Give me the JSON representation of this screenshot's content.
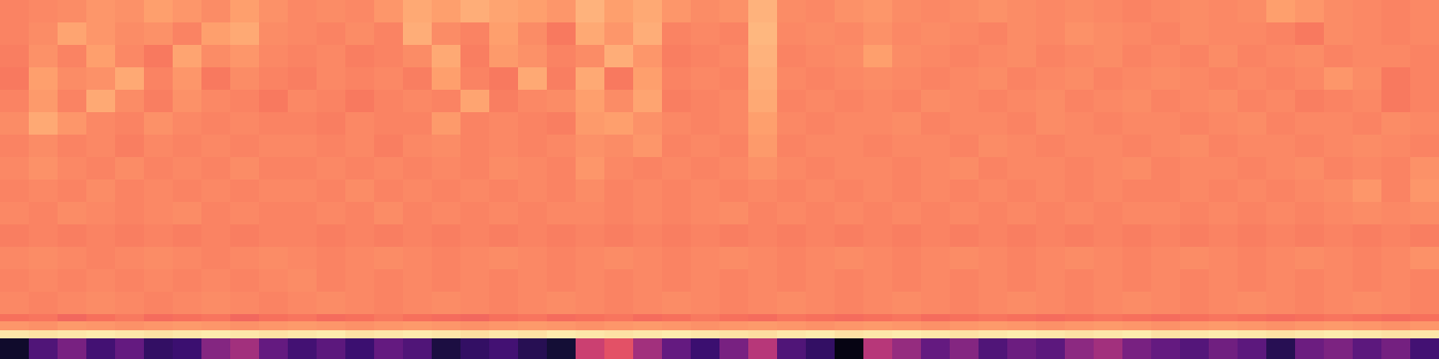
{
  "chart_data": {
    "type": "heatmap",
    "color": "magma",
    "tick_labels": false,
    "grid": false,
    "xlim": [
      -0.5,
      49.5
    ],
    "ylim": [
      400,
      0
    ],
    "y": [
      0,
      25,
      50,
      75,
      100,
      125,
      150,
      175,
      200,
      225,
      250,
      275,
      300,
      325,
      350,
      358,
      368,
      377,
      400
    ],
    "zlim": [
      0,
      1
    ],
    "z": [
      [
        0.74,
        0.75,
        0.76,
        0.78,
        0.77,
        0.8,
        0.78,
        0.76,
        0.8,
        0.77,
        0.75,
        0.76,
        0.75,
        0.78,
        0.82,
        0.8,
        0.83,
        0.81,
        0.8,
        0.78,
        0.84,
        0.8,
        0.82,
        0.78,
        0.76,
        0.77,
        0.84,
        0.76,
        0.75,
        0.77,
        0.78,
        0.76,
        0.75,
        0.76,
        0.77,
        0.76,
        0.75,
        0.76,
        0.75,
        0.74,
        0.75,
        0.76,
        0.75,
        0.76,
        0.8,
        0.78,
        0.76,
        0.75,
        0.74,
        0.75
      ],
      [
        0.74,
        0.76,
        0.81,
        0.78,
        0.76,
        0.77,
        0.74,
        0.8,
        0.82,
        0.76,
        0.75,
        0.74,
        0.76,
        0.74,
        0.83,
        0.76,
        0.74,
        0.8,
        0.76,
        0.72,
        0.82,
        0.78,
        0.83,
        0.74,
        0.75,
        0.74,
        0.85,
        0.75,
        0.76,
        0.75,
        0.77,
        0.75,
        0.76,
        0.75,
        0.74,
        0.76,
        0.75,
        0.77,
        0.76,
        0.75,
        0.74,
        0.76,
        0.75,
        0.75,
        0.74,
        0.72,
        0.76,
        0.75,
        0.74,
        0.75
      ],
      [
        0.73,
        0.77,
        0.74,
        0.8,
        0.75,
        0.72,
        0.81,
        0.76,
        0.78,
        0.75,
        0.74,
        0.75,
        0.73,
        0.74,
        0.76,
        0.82,
        0.73,
        0.79,
        0.77,
        0.74,
        0.76,
        0.83,
        0.78,
        0.73,
        0.74,
        0.75,
        0.84,
        0.74,
        0.75,
        0.76,
        0.8,
        0.76,
        0.75,
        0.74,
        0.75,
        0.76,
        0.74,
        0.75,
        0.76,
        0.74,
        0.75,
        0.74,
        0.76,
        0.74,
        0.75,
        0.76,
        0.74,
        0.75,
        0.75,
        0.74
      ],
      [
        0.72,
        0.8,
        0.76,
        0.77,
        0.82,
        0.74,
        0.78,
        0.72,
        0.76,
        0.74,
        0.73,
        0.75,
        0.74,
        0.75,
        0.73,
        0.8,
        0.74,
        0.72,
        0.82,
        0.73,
        0.82,
        0.72,
        0.8,
        0.74,
        0.75,
        0.74,
        0.83,
        0.75,
        0.74,
        0.75,
        0.76,
        0.75,
        0.74,
        0.75,
        0.76,
        0.74,
        0.75,
        0.76,
        0.74,
        0.75,
        0.76,
        0.75,
        0.74,
        0.75,
        0.74,
        0.75,
        0.78,
        0.76,
        0.72,
        0.74
      ],
      [
        0.74,
        0.79,
        0.74,
        0.82,
        0.76,
        0.73,
        0.77,
        0.75,
        0.74,
        0.72,
        0.75,
        0.74,
        0.72,
        0.74,
        0.75,
        0.74,
        0.81,
        0.73,
        0.75,
        0.76,
        0.8,
        0.76,
        0.81,
        0.73,
        0.74,
        0.75,
        0.82,
        0.74,
        0.75,
        0.74,
        0.75,
        0.74,
        0.76,
        0.75,
        0.74,
        0.75,
        0.76,
        0.74,
        0.75,
        0.76,
        0.74,
        0.75,
        0.76,
        0.74,
        0.75,
        0.73,
        0.74,
        0.75,
        0.72,
        0.74
      ],
      [
        0.76,
        0.82,
        0.78,
        0.75,
        0.74,
        0.77,
        0.75,
        0.74,
        0.75,
        0.74,
        0.74,
        0.73,
        0.75,
        0.74,
        0.74,
        0.79,
        0.74,
        0.75,
        0.74,
        0.73,
        0.79,
        0.8,
        0.77,
        0.75,
        0.74,
        0.75,
        0.8,
        0.75,
        0.74,
        0.75,
        0.75,
        0.76,
        0.74,
        0.75,
        0.75,
        0.74,
        0.76,
        0.75,
        0.74,
        0.75,
        0.75,
        0.74,
        0.75,
        0.76,
        0.74,
        0.75,
        0.75,
        0.74,
        0.76,
        0.75
      ],
      [
        0.74,
        0.76,
        0.74,
        0.75,
        0.73,
        0.75,
        0.74,
        0.75,
        0.74,
        0.75,
        0.75,
        0.74,
        0.75,
        0.73,
        0.75,
        0.76,
        0.74,
        0.75,
        0.74,
        0.75,
        0.77,
        0.76,
        0.78,
        0.74,
        0.75,
        0.74,
        0.79,
        0.74,
        0.75,
        0.75,
        0.74,
        0.75,
        0.75,
        0.74,
        0.76,
        0.75,
        0.74,
        0.75,
        0.75,
        0.74,
        0.75,
        0.76,
        0.74,
        0.75,
        0.75,
        0.74,
        0.75,
        0.76,
        0.75,
        0.74
      ],
      [
        0.75,
        0.77,
        0.75,
        0.74,
        0.76,
        0.74,
        0.75,
        0.74,
        0.76,
        0.74,
        0.74,
        0.75,
        0.74,
        0.75,
        0.74,
        0.75,
        0.74,
        0.76,
        0.75,
        0.74,
        0.78,
        0.75,
        0.74,
        0.75,
        0.74,
        0.75,
        0.77,
        0.75,
        0.74,
        0.75,
        0.75,
        0.74,
        0.75,
        0.76,
        0.74,
        0.75,
        0.75,
        0.74,
        0.75,
        0.76,
        0.74,
        0.75,
        0.75,
        0.74,
        0.75,
        0.76,
        0.74,
        0.75,
        0.74,
        0.77
      ],
      [
        0.74,
        0.75,
        0.74,
        0.76,
        0.74,
        0.75,
        0.74,
        0.75,
        0.74,
        0.75,
        0.75,
        0.74,
        0.76,
        0.74,
        0.75,
        0.74,
        0.75,
        0.74,
        0.75,
        0.74,
        0.76,
        0.74,
        0.75,
        0.74,
        0.75,
        0.74,
        0.75,
        0.74,
        0.75,
        0.74,
        0.75,
        0.74,
        0.75,
        0.74,
        0.75,
        0.74,
        0.75,
        0.74,
        0.75,
        0.74,
        0.74,
        0.75,
        0.74,
        0.75,
        0.74,
        0.75,
        0.76,
        0.78,
        0.74,
        0.78
      ],
      [
        0.75,
        0.74,
        0.76,
        0.75,
        0.74,
        0.75,
        0.76,
        0.74,
        0.75,
        0.74,
        0.74,
        0.75,
        0.74,
        0.76,
        0.74,
        0.75,
        0.74,
        0.75,
        0.74,
        0.75,
        0.75,
        0.74,
        0.75,
        0.74,
        0.75,
        0.76,
        0.74,
        0.75,
        0.74,
        0.75,
        0.74,
        0.75,
        0.74,
        0.75,
        0.74,
        0.75,
        0.74,
        0.75,
        0.74,
        0.75,
        0.75,
        0.74,
        0.75,
        0.74,
        0.75,
        0.74,
        0.75,
        0.76,
        0.75,
        0.76
      ],
      [
        0.73,
        0.74,
        0.73,
        0.74,
        0.73,
        0.74,
        0.73,
        0.74,
        0.73,
        0.74,
        0.74,
        0.73,
        0.74,
        0.73,
        0.74,
        0.73,
        0.74,
        0.73,
        0.74,
        0.73,
        0.74,
        0.73,
        0.74,
        0.73,
        0.74,
        0.73,
        0.74,
        0.73,
        0.74,
        0.73,
        0.74,
        0.73,
        0.74,
        0.73,
        0.74,
        0.73,
        0.74,
        0.73,
        0.74,
        0.73,
        0.74,
        0.73,
        0.74,
        0.73,
        0.74,
        0.73,
        0.74,
        0.73,
        0.74,
        0.73
      ],
      [
        0.75,
        0.76,
        0.75,
        0.74,
        0.75,
        0.76,
        0.75,
        0.74,
        0.75,
        0.76,
        0.75,
        0.74,
        0.75,
        0.76,
        0.75,
        0.74,
        0.75,
        0.76,
        0.75,
        0.74,
        0.75,
        0.76,
        0.75,
        0.74,
        0.75,
        0.76,
        0.75,
        0.74,
        0.75,
        0.76,
        0.75,
        0.74,
        0.75,
        0.76,
        0.75,
        0.74,
        0.75,
        0.76,
        0.75,
        0.74,
        0.75,
        0.76,
        0.75,
        0.74,
        0.75,
        0.76,
        0.75,
        0.74,
        0.75,
        0.77
      ],
      [
        0.74,
        0.75,
        0.74,
        0.75,
        0.74,
        0.75,
        0.74,
        0.75,
        0.74,
        0.75,
        0.76,
        0.74,
        0.75,
        0.74,
        0.75,
        0.74,
        0.75,
        0.74,
        0.75,
        0.74,
        0.75,
        0.74,
        0.75,
        0.74,
        0.75,
        0.74,
        0.75,
        0.74,
        0.75,
        0.74,
        0.75,
        0.74,
        0.75,
        0.74,
        0.75,
        0.74,
        0.75,
        0.74,
        0.75,
        0.74,
        0.75,
        0.74,
        0.75,
        0.74,
        0.75,
        0.74,
        0.75,
        0.74,
        0.75,
        0.74
      ],
      [
        0.75,
        0.74,
        0.75,
        0.76,
        0.75,
        0.74,
        0.75,
        0.76,
        0.75,
        0.74,
        0.75,
        0.76,
        0.75,
        0.74,
        0.75,
        0.76,
        0.75,
        0.74,
        0.75,
        0.76,
        0.75,
        0.74,
        0.75,
        0.76,
        0.75,
        0.74,
        0.75,
        0.76,
        0.75,
        0.74,
        0.75,
        0.76,
        0.75,
        0.74,
        0.75,
        0.76,
        0.75,
        0.74,
        0.75,
        0.76,
        0.75,
        0.74,
        0.75,
        0.76,
        0.75,
        0.74,
        0.75,
        0.76,
        0.75,
        0.74
      ],
      [
        0.7,
        0.71,
        0.68,
        0.7,
        0.72,
        0.69,
        0.7,
        0.71,
        0.68,
        0.7,
        0.71,
        0.69,
        0.7,
        0.72,
        0.7,
        0.69,
        0.68,
        0.7,
        0.71,
        0.69,
        0.7,
        0.71,
        0.69,
        0.7,
        0.72,
        0.7,
        0.69,
        0.71,
        0.7,
        0.69,
        0.7,
        0.71,
        0.69,
        0.7,
        0.71,
        0.7,
        0.69,
        0.7,
        0.71,
        0.7,
        0.69,
        0.7,
        0.71,
        0.7,
        0.69,
        0.7,
        0.71,
        0.7,
        0.69,
        0.7
      ],
      [
        0.78,
        0.77,
        0.79,
        0.78,
        0.77,
        0.78,
        0.79,
        0.78,
        0.77,
        0.78,
        0.79,
        0.78,
        0.77,
        0.78,
        0.79,
        0.78,
        0.77,
        0.78,
        0.79,
        0.78,
        0.77,
        0.78,
        0.79,
        0.78,
        0.77,
        0.78,
        0.79,
        0.78,
        0.77,
        0.78,
        0.79,
        0.78,
        0.77,
        0.78,
        0.79,
        0.78,
        0.77,
        0.78,
        0.79,
        0.78,
        0.77,
        0.78,
        0.79,
        0.78,
        0.77,
        0.78,
        0.79,
        0.78,
        0.77,
        0.78
      ],
      [
        0.95,
        0.94,
        0.95,
        0.96,
        0.95,
        0.94,
        0.95,
        0.96,
        0.95,
        0.94,
        0.95,
        0.96,
        0.94,
        0.95,
        0.96,
        0.95,
        0.93,
        0.95,
        0.94,
        0.96,
        0.95,
        0.94,
        0.95,
        0.96,
        0.95,
        0.94,
        0.93,
        0.95,
        0.96,
        0.94,
        0.95,
        0.96,
        0.95,
        0.94,
        0.95,
        0.96,
        0.95,
        0.94,
        0.95,
        0.96,
        0.94,
        0.95,
        0.96,
        0.95,
        0.94,
        0.95,
        0.96,
        0.95,
        0.94,
        0.95
      ],
      [
        0.08,
        0.25,
        0.35,
        0.22,
        0.3,
        0.18,
        0.2,
        0.38,
        0.45,
        0.3,
        0.22,
        0.28,
        0.2,
        0.3,
        0.25,
        0.12,
        0.18,
        0.22,
        0.15,
        0.1,
        0.55,
        0.62,
        0.45,
        0.3,
        0.2,
        0.35,
        0.5,
        0.25,
        0.18,
        0.03,
        0.5,
        0.42,
        0.3,
        0.38,
        0.25,
        0.32,
        0.28,
        0.4,
        0.45,
        0.35,
        0.3,
        0.26,
        0.33,
        0.28,
        0.15,
        0.32,
        0.36,
        0.28,
        0.34,
        0.22
      ]
    ]
  }
}
